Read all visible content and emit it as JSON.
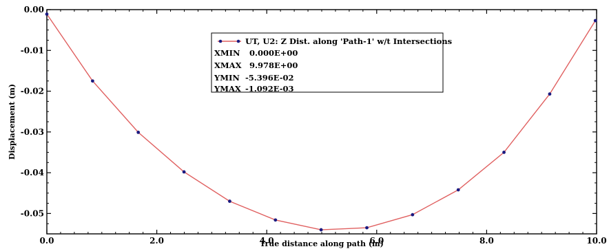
{
  "chart_data": {
    "type": "line",
    "xlabel": "True distance along path (m)",
    "ylabel": "Displacement (m)",
    "xlim": [
      0,
      10
    ],
    "ylim": [
      -0.055,
      0
    ],
    "x_ticks": [
      0,
      2,
      4,
      6,
      8,
      10
    ],
    "x_tick_labels": [
      "0.0",
      "2.0",
      "4.0",
      "6.0",
      "8.0",
      "10.0"
    ],
    "y_ticks": [
      0,
      -0.01,
      -0.02,
      -0.03,
      -0.04,
      -0.05
    ],
    "y_tick_labels": [
      "0.00",
      "-0.01",
      "-0.02",
      "-0.03",
      "-0.04",
      "-0.05"
    ],
    "grid": false,
    "legend_position": "top-center",
    "series": [
      {
        "name": "UT, U2: Z Dist. along 'Path-1' w/t Intersections",
        "line_color": "#e06060",
        "marker_color": "#1a1a80",
        "x": [
          0.0,
          0.832,
          1.663,
          2.495,
          3.326,
          4.158,
          4.989,
          5.821,
          6.652,
          7.484,
          8.315,
          9.147,
          9.978
        ],
        "y": [
          -0.0011,
          -0.0175,
          -0.0301,
          -0.0398,
          -0.047,
          -0.0516,
          -0.054,
          -0.0535,
          -0.0503,
          -0.0442,
          -0.035,
          -0.0207,
          -0.0027
        ]
      }
    ],
    "legend_stats": [
      {
        "key": "XMIN",
        "value": "0.000E+00"
      },
      {
        "key": "XMAX",
        "value": "9.978E+00"
      },
      {
        "key": "YMIN",
        "value": "-5.396E-02"
      },
      {
        "key": "YMAX",
        "value": "-1.092E-03"
      }
    ]
  }
}
